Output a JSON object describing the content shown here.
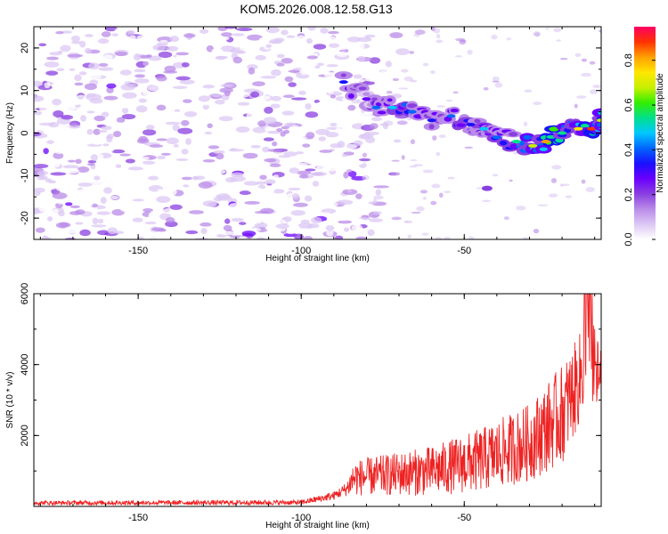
{
  "title": "KOM5.2026.008.12.58.G13",
  "chart_data": [
    {
      "type": "heatmap",
      "name": "spectrogram",
      "xlabel": "Height of straight line (km)",
      "ylabel": "Frequency (Hz)",
      "xlim": [
        -182,
        -8
      ],
      "ylim": [
        -25,
        25
      ],
      "xticks": [
        -150,
        -100,
        -50
      ],
      "yticks": [
        -20,
        -10,
        0,
        10,
        20
      ],
      "colorbar": {
        "label": "Normalized spectral amplitude",
        "range": [
          0,
          0.95
        ],
        "ticks": [
          0.0,
          0.2,
          0.4,
          0.6,
          0.8
        ],
        "colors": [
          "#ffffff",
          "#dcc8f4",
          "#b98be8",
          "#8a3fe0",
          "#6a00ff",
          "#1a10ff",
          "#0066ff",
          "#00c8ff",
          "#00e08c",
          "#33ee00",
          "#c8f000",
          "#ffe600",
          "#ffa000",
          "#ff3200",
          "#ff0064"
        ]
      },
      "noise_region_km": [
        -182,
        -86
      ],
      "signal_track": [
        {
          "x": -87,
          "y": 12,
          "amp": 0.34
        },
        {
          "x": -80,
          "y": 8,
          "amp": 0.3
        },
        {
          "x": -77,
          "y": 6,
          "amp": 0.4
        },
        {
          "x": -72,
          "y": 6,
          "amp": 0.48
        },
        {
          "x": -66,
          "y": 5,
          "amp": 0.38
        },
        {
          "x": -60,
          "y": 3,
          "amp": 0.35
        },
        {
          "x": -54,
          "y": 4,
          "amp": 0.4
        },
        {
          "x": -48,
          "y": 2,
          "amp": 0.36
        },
        {
          "x": -44,
          "y": 1,
          "amp": 0.48
        },
        {
          "x": -40,
          "y": -1,
          "amp": 0.42
        },
        {
          "x": -34,
          "y": -2,
          "amp": 0.52
        },
        {
          "x": -29,
          "y": -3,
          "amp": 0.66
        },
        {
          "x": -25,
          "y": -2,
          "amp": 0.82
        },
        {
          "x": -20,
          "y": 0,
          "amp": 0.55
        },
        {
          "x": -15,
          "y": 1,
          "amp": 0.74
        },
        {
          "x": -11,
          "y": 1,
          "amp": 0.85
        },
        {
          "x": -8,
          "y": 3,
          "amp": 0.66
        }
      ]
    },
    {
      "type": "line",
      "name": "snr",
      "xlabel": "Height of straight line (km)",
      "ylabel": "SNR (10 * v/v)",
      "xlim": [
        -182,
        -8
      ],
      "ylim": [
        0,
        6000
      ],
      "xticks": [
        -150,
        -100,
        -50
      ],
      "yticks": [
        2000,
        4000,
        6000
      ],
      "color": "#ee2222",
      "envelope": [
        {
          "x": -182,
          "mean": 100,
          "spread": 60
        },
        {
          "x": -100,
          "mean": 110,
          "spread": 70
        },
        {
          "x": -90,
          "mean": 300,
          "spread": 120
        },
        {
          "x": -86,
          "mean": 500,
          "spread": 200
        },
        {
          "x": -84,
          "mean": 800,
          "spread": 500
        },
        {
          "x": -60,
          "mean": 1000,
          "spread": 700
        },
        {
          "x": -45,
          "mean": 1300,
          "spread": 900
        },
        {
          "x": -30,
          "mean": 1800,
          "spread": 1100
        },
        {
          "x": -20,
          "mean": 2600,
          "spread": 1400
        },
        {
          "x": -15,
          "mean": 3500,
          "spread": 1300
        },
        {
          "x": -12,
          "mean": 4300,
          "spread": 1300
        },
        {
          "x": -8,
          "mean": 3400,
          "spread": 1100
        }
      ]
    }
  ]
}
